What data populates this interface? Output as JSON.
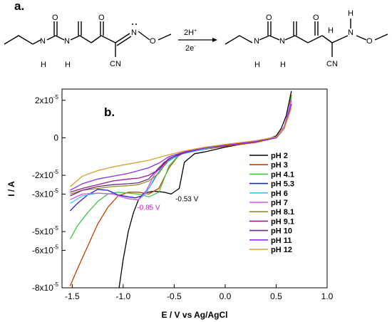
{
  "scheme": {
    "label": "a.",
    "reagent_top": "2H",
    "reagent_top_sup": "+",
    "reagent_bottom": "2e",
    "reagent_bottom_sup": "-",
    "reactant_atoms": [
      "N",
      "H",
      "O",
      "N",
      "H",
      "O",
      "N",
      "O",
      "CN"
    ],
    "product_atoms": [
      "N",
      "H",
      "O",
      "N",
      "H",
      "O",
      "H",
      "H",
      "N",
      "O",
      "CN"
    ]
  },
  "chart_data": {
    "type": "line",
    "panel_label": "b.",
    "title": "",
    "xlabel": "E / V vs Ag/AgCl",
    "ylabel": "I / A",
    "xlim": [
      -1.6,
      1.0
    ],
    "ylim": [
      -8e-05,
      2.6e-05
    ],
    "x_ticks": [
      -1.5,
      -1.0,
      -0.5,
      0.0,
      0.5,
      1.0
    ],
    "x_tick_labels": [
      "-1.5",
      "-1.0",
      "-0.5",
      "0.0",
      "0.5",
      "1.0"
    ],
    "y_ticks": [
      2e-05,
      0,
      -2e-05,
      -3e-05,
      -5e-05,
      -6e-05,
      -8e-05
    ],
    "y_tick_labels": [
      {
        "mant": "2x10",
        "exp": "-5"
      },
      {
        "mant": "0",
        "exp": ""
      },
      {
        "mant": "-2x10",
        "exp": "-5"
      },
      {
        "mant": "-3x10",
        "exp": "-5"
      },
      {
        "mant": "-5x10",
        "exp": "-5"
      },
      {
        "mant": "-6x10",
        "exp": "-5"
      },
      {
        "mant": "-8x10",
        "exp": "-5"
      }
    ],
    "legend_position": "right",
    "annotations": [
      {
        "text": "-0.53 V",
        "x": -0.53,
        "y": -3e-05,
        "color": "#000000"
      },
      {
        "text": "-0.85 V",
        "x": -0.85,
        "y": -3.3e-05,
        "color": "#c020c0"
      }
    ],
    "series": [
      {
        "name": "pH 2",
        "color": "#000000",
        "points": [
          [
            -1.04,
            -8.0
          ],
          [
            -1.0,
            -6.5
          ],
          [
            -0.95,
            -5.0
          ],
          [
            -0.9,
            -4.0
          ],
          [
            -0.85,
            -3.3
          ],
          [
            -0.8,
            -2.95
          ],
          [
            -0.7,
            -2.85
          ],
          [
            -0.6,
            -2.9
          ],
          [
            -0.53,
            -3.0
          ],
          [
            -0.45,
            -2.7
          ],
          [
            -0.4,
            -1.3
          ],
          [
            -0.3,
            -0.85
          ],
          [
            -0.2,
            -0.75
          ],
          [
            0.0,
            -0.5
          ],
          [
            0.2,
            -0.3
          ],
          [
            0.4,
            -0.1
          ],
          [
            0.5,
            0.1
          ],
          [
            0.55,
            0.5
          ],
          [
            0.6,
            1.2
          ],
          [
            0.65,
            2.5
          ]
        ]
      },
      {
        "name": "pH 3",
        "color": "#c04000",
        "points": [
          [
            -1.52,
            -7.9
          ],
          [
            -1.45,
            -7.0
          ],
          [
            -1.35,
            -5.8
          ],
          [
            -1.25,
            -4.6
          ],
          [
            -1.15,
            -3.7
          ],
          [
            -1.05,
            -3.1
          ],
          [
            -0.95,
            -2.9
          ],
          [
            -0.85,
            -2.9
          ],
          [
            -0.75,
            -3.0
          ],
          [
            -0.65,
            -2.7
          ],
          [
            -0.55,
            -1.6
          ],
          [
            -0.45,
            -0.9
          ],
          [
            -0.3,
            -0.7
          ],
          [
            0.0,
            -0.45
          ],
          [
            0.3,
            -0.25
          ],
          [
            0.5,
            0.0
          ],
          [
            0.58,
            0.5
          ],
          [
            0.62,
            1.3
          ],
          [
            0.65,
            2.3
          ]
        ]
      },
      {
        "name": "pH 4.1",
        "color": "#3cc83c",
        "points": [
          [
            -1.52,
            -5.4
          ],
          [
            -1.45,
            -4.7
          ],
          [
            -1.35,
            -4.0
          ],
          [
            -1.25,
            -3.4
          ],
          [
            -1.15,
            -3.0
          ],
          [
            -1.05,
            -2.9
          ],
          [
            -0.95,
            -2.95
          ],
          [
            -0.85,
            -3.0
          ],
          [
            -0.75,
            -3.15
          ],
          [
            -0.65,
            -2.9
          ],
          [
            -0.55,
            -1.5
          ],
          [
            -0.45,
            -0.9
          ],
          [
            -0.3,
            -0.6
          ],
          [
            0.0,
            -0.4
          ],
          [
            0.3,
            -0.2
          ],
          [
            0.5,
            0.0
          ],
          [
            0.58,
            0.6
          ],
          [
            0.63,
            1.4
          ],
          [
            0.65,
            2.2
          ]
        ]
      },
      {
        "name": "pH 5.3",
        "color": "#2020e0",
        "points": [
          [
            -1.52,
            -3.9
          ],
          [
            -1.45,
            -3.5
          ],
          [
            -1.35,
            -3.05
          ],
          [
            -1.25,
            -2.75
          ],
          [
            -1.15,
            -2.8
          ],
          [
            -1.05,
            -3.05
          ],
          [
            -0.95,
            -3.15
          ],
          [
            -0.88,
            -3.2
          ],
          [
            -0.82,
            -3.1
          ],
          [
            -0.75,
            -2.7
          ],
          [
            -0.65,
            -1.8
          ],
          [
            -0.55,
            -1.2
          ],
          [
            -0.4,
            -0.8
          ],
          [
            -0.2,
            -0.55
          ],
          [
            0.0,
            -0.4
          ],
          [
            0.3,
            -0.2
          ],
          [
            0.5,
            0.0
          ],
          [
            0.58,
            0.6
          ],
          [
            0.65,
            2.0
          ]
        ]
      },
      {
        "name": "pH 6",
        "color": "#40c8f0",
        "points": [
          [
            -1.52,
            -3.5
          ],
          [
            -1.4,
            -3.1
          ],
          [
            -1.25,
            -2.95
          ],
          [
            -1.1,
            -3.0
          ],
          [
            -0.95,
            -3.25
          ],
          [
            -0.85,
            -3.3
          ],
          [
            -0.78,
            -3.0
          ],
          [
            -0.7,
            -2.2
          ],
          [
            -0.6,
            -1.4
          ],
          [
            -0.45,
            -0.9
          ],
          [
            -0.2,
            -0.6
          ],
          [
            0.0,
            -0.4
          ],
          [
            0.3,
            -0.2
          ],
          [
            0.5,
            0.0
          ],
          [
            0.58,
            0.6
          ],
          [
            0.65,
            2.0
          ]
        ]
      },
      {
        "name": "pH 7",
        "color": "#e050e0",
        "points": [
          [
            -1.52,
            -3.3
          ],
          [
            -1.4,
            -3.0
          ],
          [
            -1.25,
            -2.95
          ],
          [
            -1.1,
            -3.0
          ],
          [
            -0.95,
            -3.25
          ],
          [
            -0.85,
            -3.3
          ],
          [
            -0.78,
            -2.9
          ],
          [
            -0.7,
            -2.0
          ],
          [
            -0.6,
            -1.3
          ],
          [
            -0.45,
            -0.85
          ],
          [
            -0.2,
            -0.55
          ],
          [
            0.0,
            -0.4
          ],
          [
            0.3,
            -0.2
          ],
          [
            0.5,
            0.0
          ],
          [
            0.58,
            0.6
          ],
          [
            0.65,
            2.0
          ]
        ]
      },
      {
        "name": "pH 8.1",
        "color": "#909020",
        "points": [
          [
            -1.52,
            -3.0
          ],
          [
            -1.4,
            -2.8
          ],
          [
            -1.25,
            -2.7
          ],
          [
            -1.1,
            -2.6
          ],
          [
            -0.95,
            -2.55
          ],
          [
            -0.85,
            -2.5
          ],
          [
            -0.75,
            -2.3
          ],
          [
            -0.65,
            -1.9
          ],
          [
            -0.55,
            -1.1
          ],
          [
            -0.4,
            -0.8
          ],
          [
            -0.2,
            -0.55
          ],
          [
            0.0,
            -0.4
          ],
          [
            0.3,
            -0.2
          ],
          [
            0.5,
            0.0
          ],
          [
            0.58,
            0.5
          ],
          [
            0.65,
            1.8
          ]
        ]
      },
      {
        "name": "pH 9.1",
        "color": "#a01890",
        "points": [
          [
            -1.52,
            -2.9
          ],
          [
            -1.4,
            -2.7
          ],
          [
            -1.25,
            -2.5
          ],
          [
            -1.1,
            -2.3
          ],
          [
            -0.95,
            -2.2
          ],
          [
            -0.85,
            -2.15
          ],
          [
            -0.75,
            -2.0
          ],
          [
            -0.65,
            -1.7
          ],
          [
            -0.55,
            -1.1
          ],
          [
            -0.4,
            -0.8
          ],
          [
            -0.2,
            -0.55
          ],
          [
            0.0,
            -0.4
          ],
          [
            0.3,
            -0.2
          ],
          [
            0.5,
            0.0
          ],
          [
            0.58,
            0.5
          ],
          [
            0.65,
            1.8
          ]
        ]
      },
      {
        "name": "pH 10",
        "color": "#6a2a88",
        "points": [
          [
            -1.52,
            -3.1
          ],
          [
            -1.4,
            -2.8
          ],
          [
            -1.25,
            -2.6
          ],
          [
            -1.1,
            -2.5
          ],
          [
            -0.95,
            -2.45
          ],
          [
            -0.85,
            -2.4
          ],
          [
            -0.75,
            -2.2
          ],
          [
            -0.65,
            -1.6
          ],
          [
            -0.55,
            -1.1
          ],
          [
            -0.4,
            -0.75
          ],
          [
            -0.2,
            -0.55
          ],
          [
            0.0,
            -0.4
          ],
          [
            0.3,
            -0.2
          ],
          [
            0.5,
            0.0
          ],
          [
            0.58,
            0.5
          ],
          [
            0.65,
            1.8
          ]
        ]
      },
      {
        "name": "pH 11",
        "color": "#8a30f0",
        "points": [
          [
            -1.52,
            -2.8
          ],
          [
            -1.4,
            -2.45
          ],
          [
            -1.25,
            -2.2
          ],
          [
            -1.1,
            -2.05
          ],
          [
            -0.95,
            -1.9
          ],
          [
            -0.85,
            -1.75
          ],
          [
            -0.75,
            -1.6
          ],
          [
            -0.65,
            -1.35
          ],
          [
            -0.55,
            -1.0
          ],
          [
            -0.4,
            -0.75
          ],
          [
            -0.2,
            -0.55
          ],
          [
            0.0,
            -0.4
          ],
          [
            0.3,
            -0.2
          ],
          [
            0.5,
            0.0
          ],
          [
            0.58,
            0.5
          ],
          [
            0.65,
            1.8
          ]
        ]
      },
      {
        "name": "pH 12",
        "color": "#d8a030",
        "points": [
          [
            -1.52,
            -2.6
          ],
          [
            -1.4,
            -2.05
          ],
          [
            -1.25,
            -1.75
          ],
          [
            -1.1,
            -1.55
          ],
          [
            -0.95,
            -1.4
          ],
          [
            -0.85,
            -1.3
          ],
          [
            -0.75,
            -1.2
          ],
          [
            -0.65,
            -1.05
          ],
          [
            -0.55,
            -0.9
          ],
          [
            -0.4,
            -0.7
          ],
          [
            -0.2,
            -0.5
          ],
          [
            0.0,
            -0.35
          ],
          [
            0.3,
            -0.15
          ],
          [
            0.5,
            0.05
          ],
          [
            0.58,
            0.5
          ],
          [
            0.65,
            1.6
          ]
        ]
      }
    ],
    "points_unit_note": ""
  }
}
